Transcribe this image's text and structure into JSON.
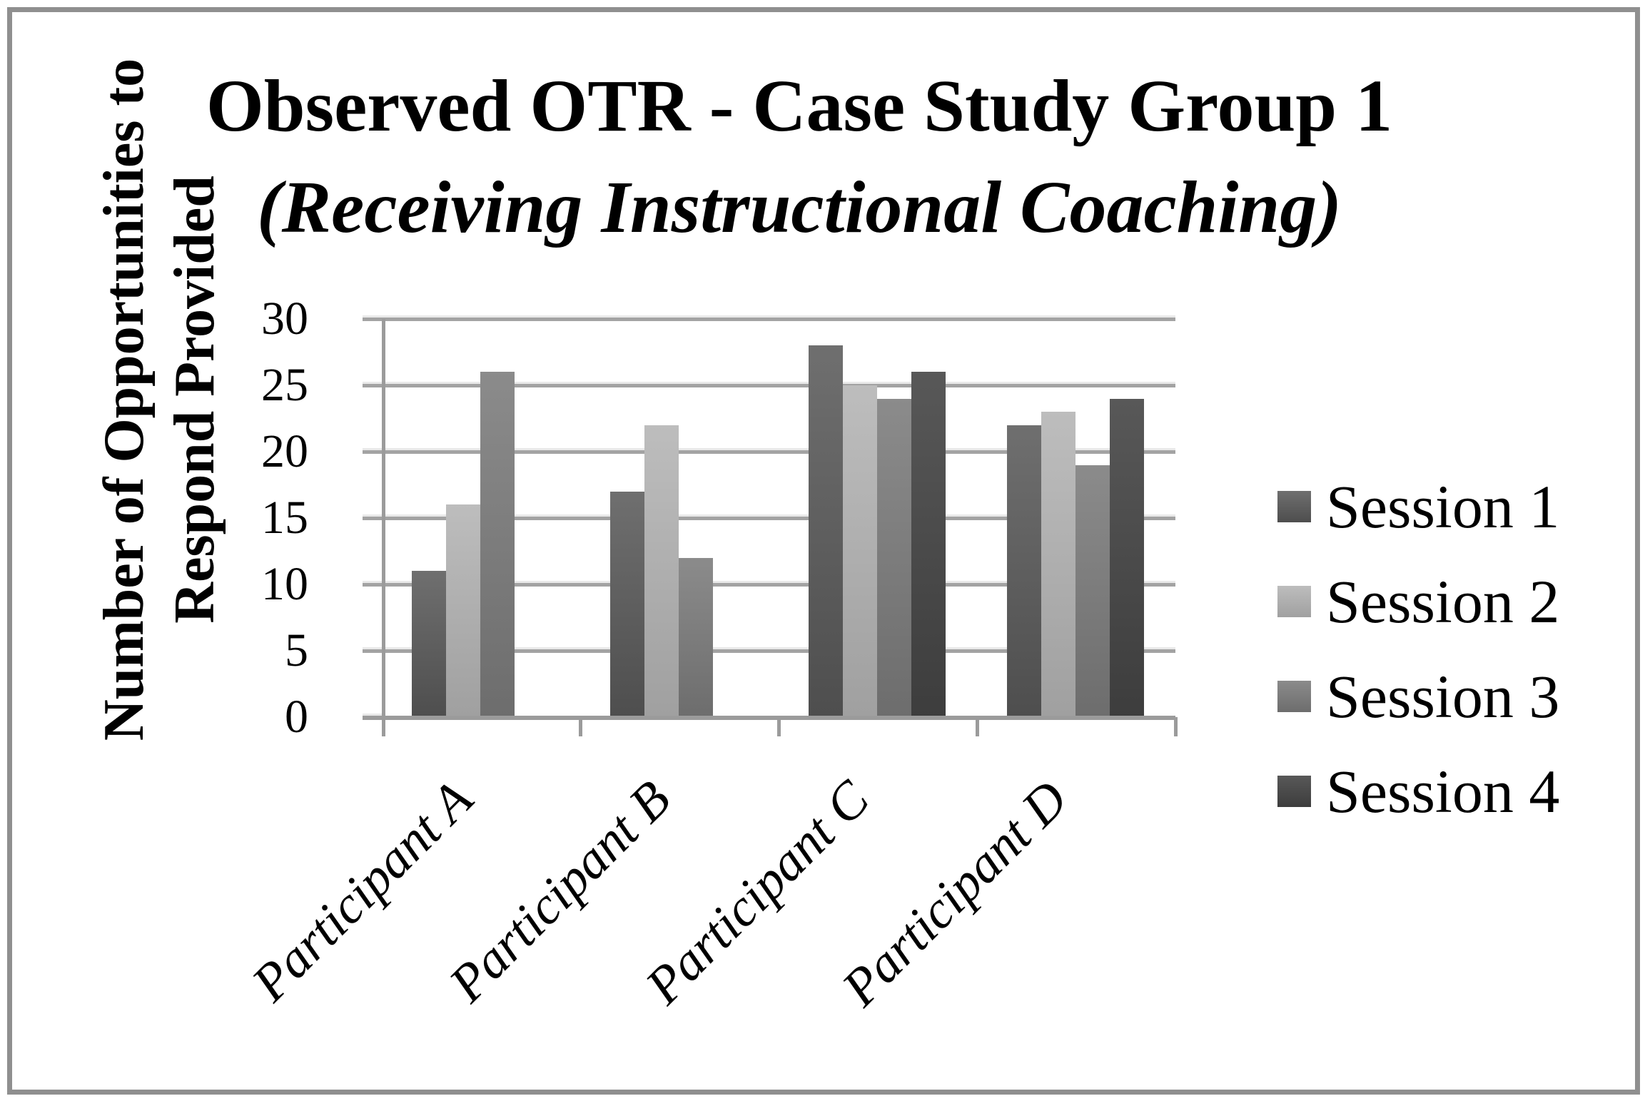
{
  "frame": {
    "border_color": "#8f8f8f"
  },
  "title": {
    "line1": "Observed OTR - Case Study Group 1",
    "line2": "(Receiving Instructional Coaching)"
  },
  "y_axis": {
    "label_line1": "Number of Opportunities to",
    "label_line2": "Respond Provided",
    "tick_values": [
      0,
      5,
      10,
      15,
      20,
      25,
      30
    ],
    "min": 0,
    "max": 30
  },
  "x_axis": {
    "categories": [
      "Participant A",
      "Participant B",
      "Participant C",
      "Participant D"
    ]
  },
  "legend": {
    "position": "right",
    "items": [
      {
        "label": "Session 1",
        "color_top": "#6f6f6f",
        "color_bottom": "#4e4e4e"
      },
      {
        "label": "Session 2",
        "color_top": "#bdbdbd",
        "color_bottom": "#a0a0a0"
      },
      {
        "label": "Session 3",
        "color_top": "#8b8b8b",
        "color_bottom": "#6d6d6d"
      },
      {
        "label": "Session 4",
        "color_top": "#585858",
        "color_bottom": "#3d3d3d"
      }
    ]
  },
  "chart_data": {
    "type": "bar",
    "title": "Observed OTR - Case Study Group 1 (Receiving Instructional Coaching)",
    "ylabel": "Number of Opportunities to Respond Provided",
    "xlabel": "",
    "categories": [
      "Participant A",
      "Participant B",
      "Participant C",
      "Participant D"
    ],
    "series": [
      {
        "name": "Session 1",
        "values": [
          11,
          17,
          28,
          22
        ]
      },
      {
        "name": "Session 2",
        "values": [
          16,
          22,
          25,
          23
        ]
      },
      {
        "name": "Session 3",
        "values": [
          26,
          12,
          24,
          19
        ]
      },
      {
        "name": "Session 4",
        "values": [
          null,
          null,
          26,
          24
        ]
      }
    ],
    "ylim": [
      0,
      30
    ],
    "ytick_step": 5,
    "grid": true,
    "legend_position": "right",
    "bar_colors_grayscale": [
      "#595959",
      "#aeaeae",
      "#7b7b7b",
      "#4a4a4a"
    ]
  }
}
